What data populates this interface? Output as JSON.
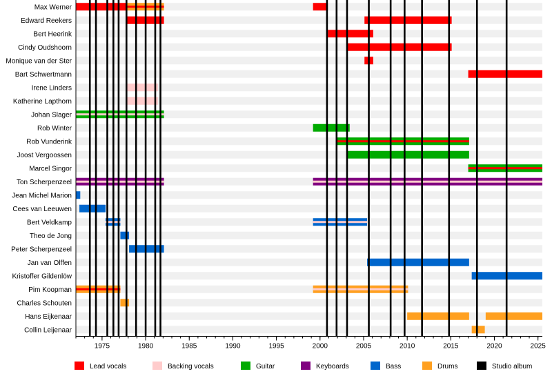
{
  "chart_data": {
    "type": "timeline",
    "title": "",
    "xlabel": "",
    "ylabel": "",
    "xlim": [
      1972.0,
      2025.5
    ],
    "x_ticks": [
      1975,
      1980,
      1985,
      1990,
      1995,
      2000,
      2005,
      2010,
      2015,
      2020,
      2025
    ],
    "grid": true,
    "legend_position": "bottom",
    "roles": [
      {
        "key": "lead_vocals",
        "name": "Lead vocals",
        "color": "#ff0000"
      },
      {
        "key": "backing_vocals",
        "name": "Backing vocals",
        "color": "#ffcccc"
      },
      {
        "key": "guitar",
        "name": "Guitar",
        "color": "#00aa00"
      },
      {
        "key": "keyboards",
        "name": "Keyboards",
        "color": "#800080"
      },
      {
        "key": "bass",
        "name": "Bass",
        "color": "#0066cc"
      },
      {
        "key": "drums",
        "name": "Drums",
        "color": "#ffa020"
      },
      {
        "key": "studio_album",
        "name": "Studio album",
        "color": "#000000"
      }
    ],
    "studio_albums": [
      1973.6,
      1974.3,
      1975.6,
      1976.3,
      1976.9,
      1977.8,
      1978.9,
      1980.0,
      1981.1,
      1981.7,
      2000.8,
      2001.9,
      2003.1,
      2005.6,
      2008.1,
      2009.7,
      2011.7,
      2014.8,
      2018.0,
      2021.4
    ],
    "members": [
      {
        "name": "Max Werner",
        "periods": [
          {
            "start": 1972.0,
            "end": 1977.8,
            "main": "lead_vocals"
          },
          {
            "start": 1977.8,
            "end": 1982.1,
            "main": "drums",
            "secondary": [
              "lead_vocals"
            ]
          },
          {
            "start": 1999.2,
            "end": 2000.9,
            "main": "lead_vocals"
          }
        ]
      },
      {
        "name": "Edward Reekers",
        "periods": [
          {
            "start": 1977.8,
            "end": 1982.1,
            "main": "lead_vocals"
          },
          {
            "start": 2005.1,
            "end": 2015.1,
            "main": "lead_vocals"
          }
        ]
      },
      {
        "name": "Bert Heerink",
        "periods": [
          {
            "start": 2000.9,
            "end": 2006.1,
            "main": "lead_vocals"
          }
        ]
      },
      {
        "name": "Cindy Oudshoorn",
        "periods": [
          {
            "start": 2003.1,
            "end": 2015.1,
            "main": "lead_vocals"
          }
        ]
      },
      {
        "name": "Monique van der Ster",
        "periods": [
          {
            "start": 2005.1,
            "end": 2006.1,
            "main": "lead_vocals"
          }
        ]
      },
      {
        "name": "Bart Schwertmann",
        "periods": [
          {
            "start": 2017.0,
            "end": 2025.5,
            "main": "lead_vocals"
          }
        ]
      },
      {
        "name": "Irene Linders",
        "periods": [
          {
            "start": 1977.8,
            "end": 1981.4,
            "main": "backing_vocals"
          }
        ]
      },
      {
        "name": "Katherine Lapthorn",
        "periods": [
          {
            "start": 1977.8,
            "end": 1981.4,
            "main": "backing_vocals"
          }
        ]
      },
      {
        "name": "Johan Slager",
        "periods": [
          {
            "start": 1972.0,
            "end": 1982.1,
            "main": "guitar",
            "secondary": [
              "backing_vocals"
            ]
          }
        ]
      },
      {
        "name": "Rob Winter",
        "periods": [
          {
            "start": 1999.2,
            "end": 2003.4,
            "main": "guitar"
          }
        ]
      },
      {
        "name": "Rob Vunderink",
        "periods": [
          {
            "start": 2001.9,
            "end": 2017.1,
            "main": "guitar",
            "secondary": [
              "lead_vocals"
            ]
          }
        ]
      },
      {
        "name": "Joost Vergoossen",
        "periods": [
          {
            "start": 2003.1,
            "end": 2017.1,
            "main": "guitar"
          }
        ]
      },
      {
        "name": "Marcel Singor",
        "periods": [
          {
            "start": 2017.0,
            "end": 2025.5,
            "main": "guitar",
            "secondary": [
              "lead_vocals"
            ]
          }
        ]
      },
      {
        "name": "Ton Scherpenzeel",
        "periods": [
          {
            "start": 1972.0,
            "end": 1982.1,
            "main": "keyboards",
            "secondary": [
              "backing_vocals"
            ]
          },
          {
            "start": 1999.2,
            "end": 2025.5,
            "main": "keyboards",
            "secondary": [
              "backing_vocals"
            ]
          }
        ]
      },
      {
        "name": "Jean Michel Marion",
        "periods": [
          {
            "start": 1972.0,
            "end": 1972.5,
            "main": "bass"
          }
        ]
      },
      {
        "name": "Cees van Leeuwen",
        "periods": [
          {
            "start": 1972.4,
            "end": 1975.4,
            "main": "bass"
          }
        ]
      },
      {
        "name": "Bert Veldkamp",
        "periods": [
          {
            "start": 1975.4,
            "end": 1977.1,
            "main": "bass",
            "secondary": [
              "backing_vocals"
            ]
          },
          {
            "start": 1999.2,
            "end": 2005.4,
            "main": "bass",
            "secondary": [
              "backing_vocals"
            ]
          }
        ]
      },
      {
        "name": "Theo de Jong",
        "periods": [
          {
            "start": 1977.1,
            "end": 1978.1,
            "main": "bass"
          }
        ]
      },
      {
        "name": "Peter Scherpenzeel",
        "periods": [
          {
            "start": 1978.1,
            "end": 1982.1,
            "main": "bass"
          }
        ]
      },
      {
        "name": "Jan van Olffen",
        "periods": [
          {
            "start": 2005.4,
            "end": 2017.1,
            "main": "bass"
          }
        ]
      },
      {
        "name": "Kristoffer Gildenlöw",
        "periods": [
          {
            "start": 2017.4,
            "end": 2025.5,
            "main": "bass"
          }
        ]
      },
      {
        "name": "Pim Koopman",
        "periods": [
          {
            "start": 1972.0,
            "end": 1977.1,
            "main": "drums",
            "secondary": [
              "lead_vocals"
            ]
          },
          {
            "start": 1999.2,
            "end": 2010.1,
            "main": "drums",
            "secondary": [
              "backing_vocals"
            ]
          }
        ]
      },
      {
        "name": "Charles Schouten",
        "periods": [
          {
            "start": 1977.1,
            "end": 1978.1,
            "main": "drums"
          }
        ]
      },
      {
        "name": "Hans Eijkenaar",
        "periods": [
          {
            "start": 2010.0,
            "end": 2017.1,
            "main": "drums"
          },
          {
            "start": 2019.0,
            "end": 2025.5,
            "main": "drums"
          }
        ]
      },
      {
        "name": "Collin Leijenaar",
        "periods": [
          {
            "start": 2017.4,
            "end": 2018.9,
            "main": "drums"
          }
        ]
      }
    ]
  }
}
